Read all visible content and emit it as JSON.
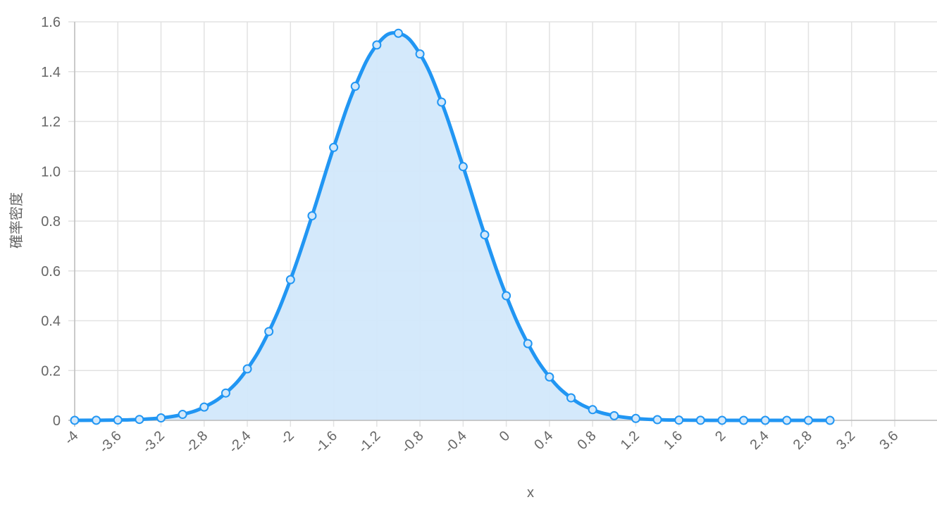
{
  "chart_data": {
    "type": "line",
    "title": "",
    "xlabel": "x",
    "ylabel": "確率密度",
    "xlim": [
      -4,
      3.6
    ],
    "ylim": [
      0,
      1.6
    ],
    "grid": true,
    "legend": "none",
    "x_ticks": [
      "-4",
      "-3.6",
      "-3.2",
      "-2.8",
      "-2.4",
      "-2",
      "-1.6",
      "-1.2",
      "-0.8",
      "-0.4",
      "0",
      "0.4",
      "0.8",
      "1.2",
      "1.6",
      "2",
      "2.4",
      "2.8",
      "3.2",
      "3.6"
    ],
    "y_ticks": [
      "0",
      "0.2",
      "0.4",
      "0.6",
      "0.8",
      "1.0",
      "1.2",
      "1.4",
      "1.6"
    ],
    "series": [
      {
        "color": "#2196f3",
        "fill_color": "#d2e8fb",
        "x": [
          -4,
          -3.8,
          -3.6,
          -3.4,
          -3.2,
          -3.0,
          -2.8,
          -2.6,
          -2.4,
          -2.2,
          -2.0,
          -1.8,
          -1.6,
          -1.4,
          -1.2,
          -1.0,
          -0.8,
          -0.6,
          -0.4,
          -0.2,
          0.0,
          0.2,
          0.4,
          0.6,
          0.8,
          1.0,
          1.2,
          1.4,
          1.6,
          1.8,
          2.0,
          2.2,
          2.4,
          2.6,
          2.8,
          3.0
        ],
        "y": [
          0.0001,
          0.0004,
          0.0013,
          0.0037,
          0.0098,
          0.0239,
          0.0534,
          0.1097,
          0.2066,
          0.3567,
          0.565,
          0.8213,
          1.0956,
          1.3412,
          1.507,
          1.5541,
          1.471,
          1.2778,
          1.0186,
          0.745,
          0.5003,
          0.3082,
          0.1742,
          0.0904,
          0.043,
          0.0188,
          0.0076,
          0.0028,
          0.001,
          0.0003,
          0.0001,
          0.0,
          0.0,
          0.0,
          0.0,
          0.0
        ]
      }
    ]
  }
}
